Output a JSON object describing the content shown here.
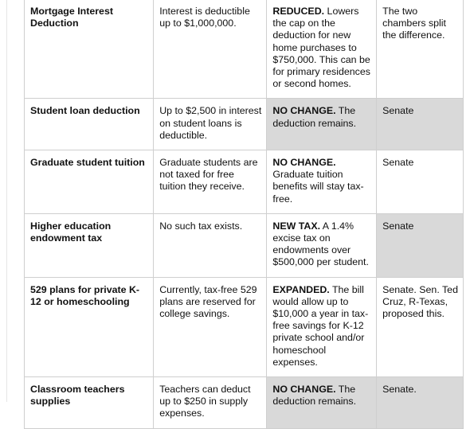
{
  "table": {
    "rows": [
      {
        "provision": "Mortgage Interest Deduction",
        "current": "Interest is deductible up to $1,000,000.",
        "change_bold": "REDUCED.",
        "change_text": "Lowers the cap on the deduction for new home purchases to $750,000. This can be for primary residences or second homes.",
        "origin": "The two chambers split the difference."
      },
      {
        "provision": "Student loan deduction",
        "current": "Up to $2,500 in interest on student loans is deductible.",
        "change_bold": "NO CHANGE.",
        "change_text": "The deduction remains.",
        "origin": "Senate"
      },
      {
        "provision": "Graduate student tuition",
        "current": "Graduate students are not taxed for free tuition they receive.",
        "change_bold": "NO CHANGE.",
        "change_text": "Graduate tuition benefits will stay tax-free.",
        "origin": "Senate"
      },
      {
        "provision": "Higher education endowment tax",
        "current": "No such tax exists.",
        "change_bold": "NEW TAX.",
        "change_text": "A 1.4% excise tax on endowments over $500,000 per student.",
        "origin": "Senate"
      },
      {
        "provision": "529 plans for private K-12 or homeschooling",
        "current": "Currently, tax-free 529 plans are reserved for college savings.",
        "change_bold": "EXPANDED.",
        "change_text": "The bill would allow up to $10,000 a year in tax-free savings for K-12 private school and/or homeschool expenses.",
        "origin": "Senate. Sen. Ted Cruz, R-Texas, proposed this."
      },
      {
        "provision": "Classroom teachers supplies",
        "current": "Teachers can deduct up to $250 in supply expenses.",
        "change_bold": "NO CHANGE.",
        "change_text": "The deduction remains.",
        "origin": "Senate."
      }
    ]
  }
}
